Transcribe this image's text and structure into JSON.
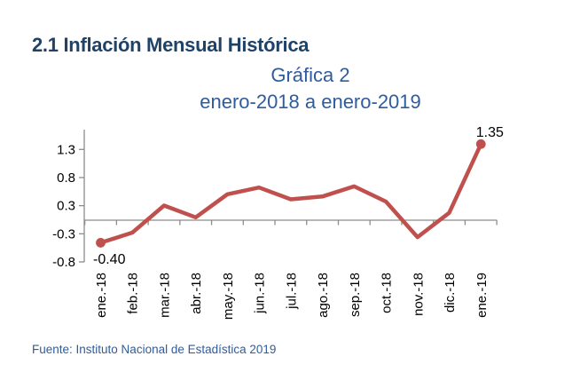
{
  "page": {
    "section_title": "2.1 Inflación Mensual Histórica",
    "chart_title": "Gráfica 2",
    "chart_subtitle": "enero-2018 a enero-2019",
    "source": "Fuente: Instituto Nacional de Estadística 2019"
  },
  "colors": {
    "title": "#1F4266",
    "subtitle": "#2E5C9E",
    "source": "#2E5C9E",
    "line": "#C0504D",
    "axis": "#8C8C8C",
    "tick_label": "#000000",
    "data_label": "#000000",
    "background": "#FFFFFF"
  },
  "chart_data": {
    "type": "line",
    "title": "Gráfica 2",
    "subtitle": "enero-2018 a enero-2019",
    "categories": [
      "ene.-18",
      "feb.-18",
      "mar.-18",
      "abr.-18",
      "may.-18",
      "jun.-18",
      "jul.-18",
      "ago.-18",
      "sep.-18",
      "oct.-18",
      "nov.-18",
      "dic.-18",
      "ene.-19"
    ],
    "values": [
      -0.4,
      -0.22,
      0.26,
      0.05,
      0.46,
      0.58,
      0.37,
      0.42,
      0.6,
      0.33,
      -0.3,
      0.13,
      1.35
    ],
    "point_labels": [
      {
        "index": 0,
        "text": "-0.40"
      },
      {
        "index": 12,
        "text": "1.35"
      }
    ],
    "marker_indices": [
      0,
      12
    ],
    "y_ticks": [
      1.3,
      0.8,
      0.3,
      -0.3,
      -0.8
    ],
    "ylim": [
      -0.8,
      1.45
    ],
    "zero_baseline": true,
    "grid": false,
    "legend": "none",
    "xlabel": "",
    "ylabel": ""
  }
}
